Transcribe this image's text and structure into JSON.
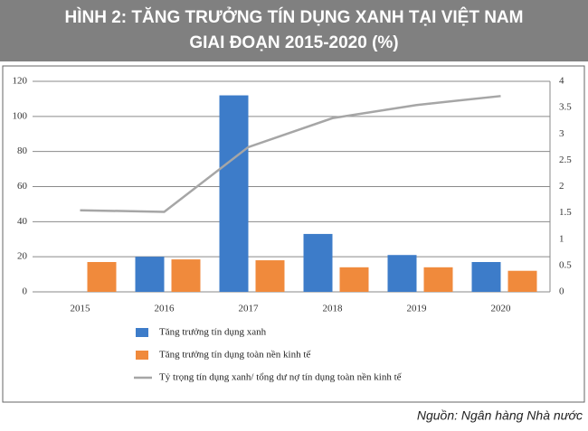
{
  "chart_data": {
    "type": "bar-line",
    "title": [
      "HÌNH 2: TĂNG TRƯỞNG TÍN DỤNG XANH TẠI VIỆT NAM",
      "GIAI ĐOẠN 2015-2020 (%)"
    ],
    "source": "Nguồn: Ngân hàng Nhà nước",
    "categories": [
      "2015",
      "2016",
      "2017",
      "2018",
      "2019",
      "2020"
    ],
    "series": [
      {
        "name": "Tăng trưởng tín dụng xanh",
        "type": "bar",
        "color": "#3d7cc9",
        "values": [
          null,
          20,
          112,
          33,
          21,
          17
        ]
      },
      {
        "name": "Tăng trưởng tín dụng toàn nền kinh tế",
        "type": "bar",
        "color": "#f08a3c",
        "values": [
          17,
          18.5,
          18,
          14,
          14,
          12
        ]
      },
      {
        "name": "Tỷ trọng tín dụng xanh/ tổng dư nợ tín dụng toàn nền kinh tế",
        "type": "line",
        "axis": "y2",
        "color": "#a6a6a6",
        "values": [
          1.55,
          1.52,
          2.75,
          3.3,
          3.55,
          3.72
        ]
      }
    ],
    "ylim": [
      0,
      120
    ],
    "yticks": [
      0,
      20,
      40,
      60,
      80,
      100,
      120
    ],
    "y2lim": [
      0,
      4
    ],
    "y2ticks": [
      0,
      0.5,
      1,
      1.5,
      2,
      2.5,
      3,
      3.5,
      4
    ],
    "grid": true
  }
}
